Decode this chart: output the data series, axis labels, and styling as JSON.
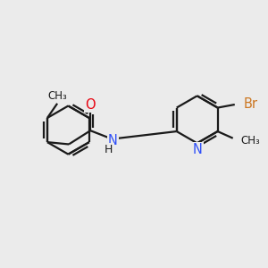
{
  "background_color": "#ebebeb",
  "bond_color": "#1a1a1a",
  "bond_width": 1.6,
  "atom_colors": {
    "O": "#e8000d",
    "N": "#3050f8",
    "Br": "#cc7722",
    "C": "#1a1a1a",
    "H": "#1a1a1a"
  },
  "font_size": 9.5,
  "fig_size": [
    3.0,
    3.0
  ],
  "dpi": 100,
  "xlim": [
    0,
    10
  ],
  "ylim": [
    0,
    10
  ]
}
